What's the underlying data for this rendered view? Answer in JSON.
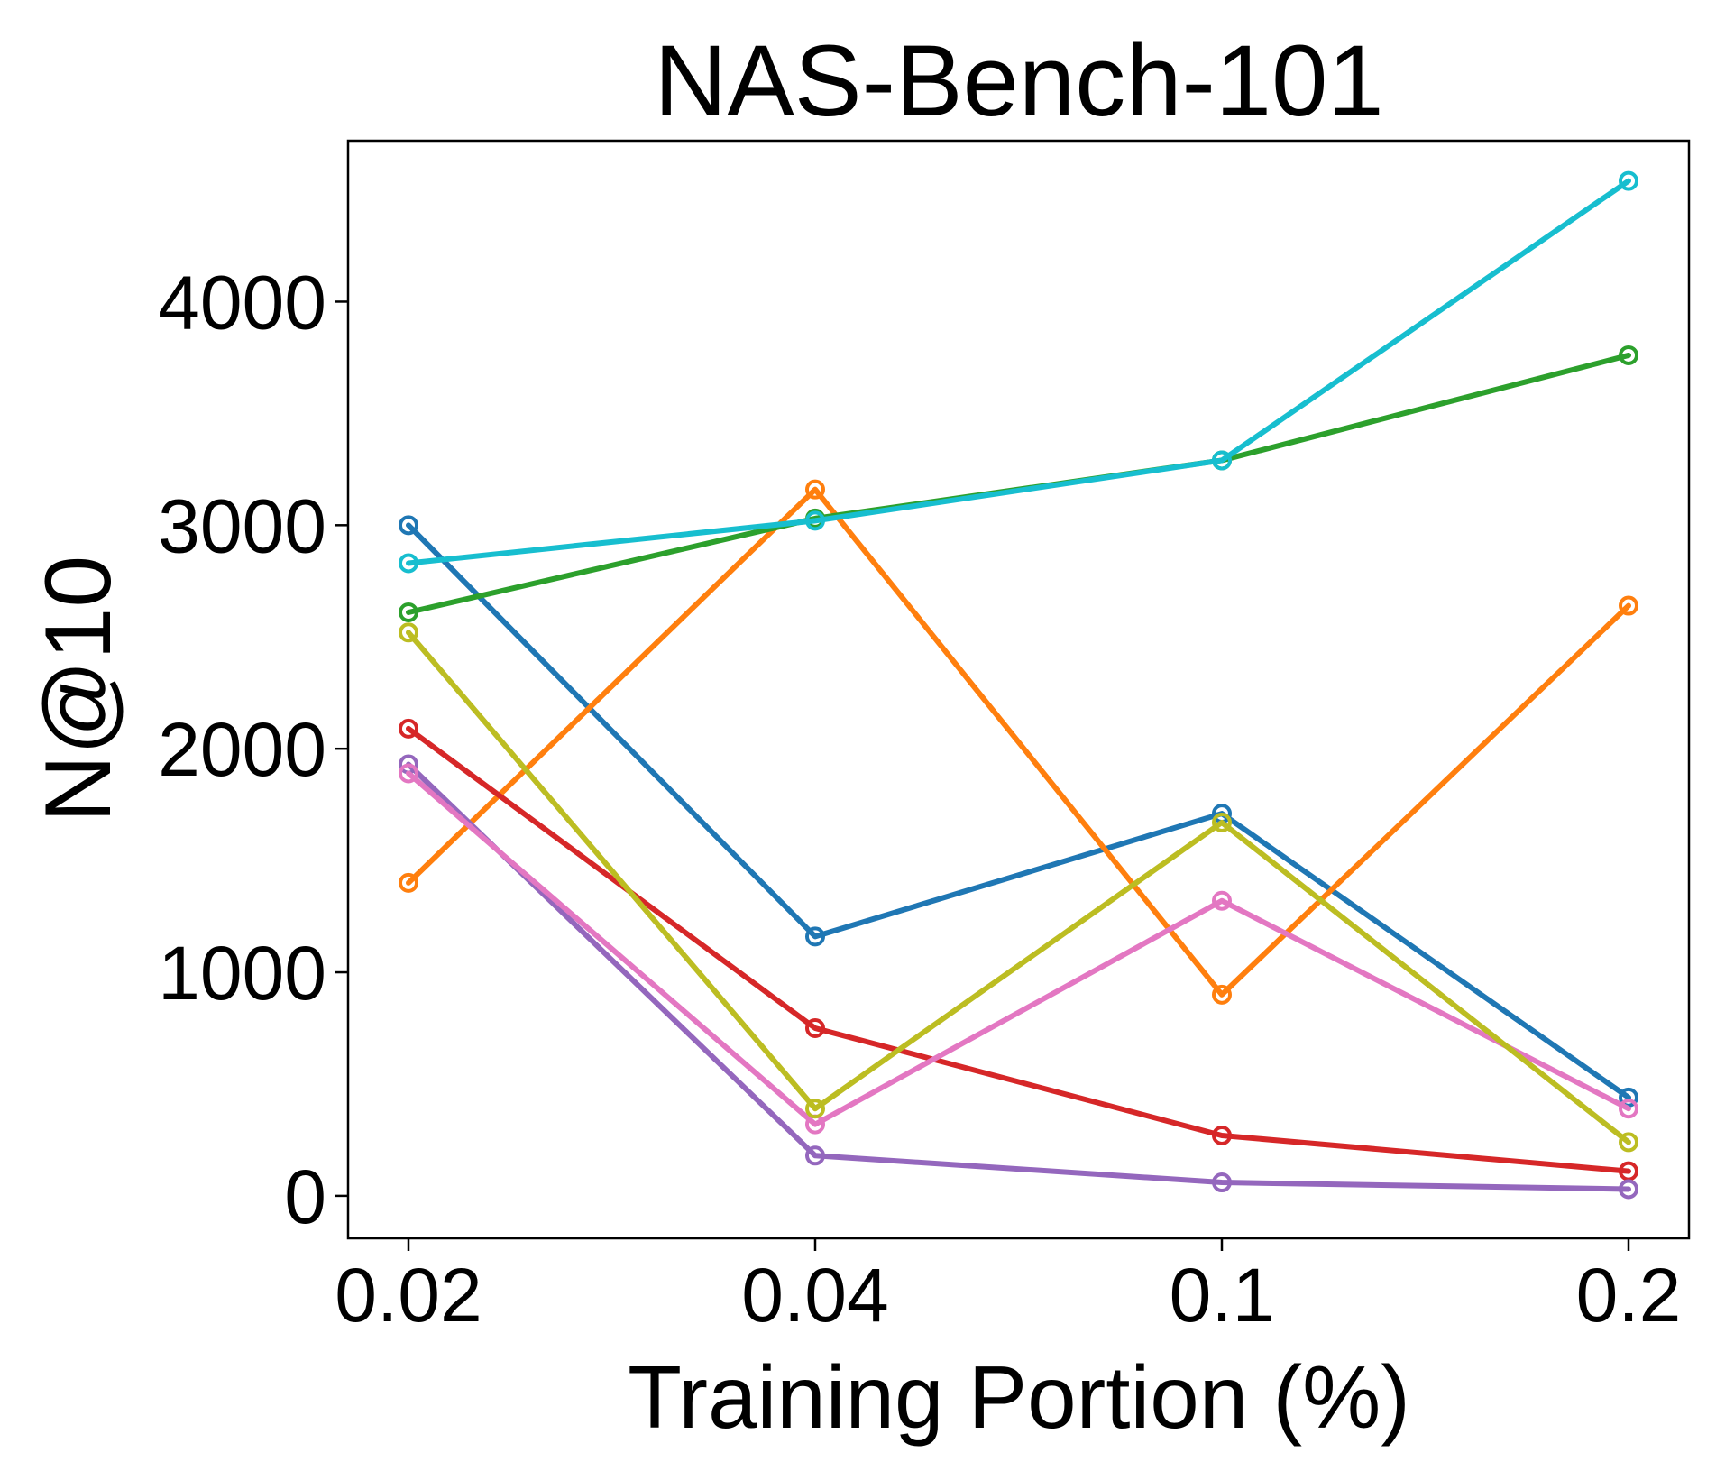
{
  "chart_data": {
    "type": "line",
    "title": "NAS-Bench-101",
    "xlabel": "Training Portion (%)",
    "ylabel": "N@10",
    "categories": [
      "0.02",
      "0.04",
      "0.1",
      "0.2"
    ],
    "ylim": [
      -190,
      4720
    ],
    "yticks": [
      0,
      1000,
      2000,
      3000,
      4000
    ],
    "grid": false,
    "series": [
      {
        "name": "blue",
        "color": "#1f77b4",
        "values": [
          3000,
          1160,
          1710,
          440
        ]
      },
      {
        "name": "orange",
        "color": "#ff7f0e",
        "values": [
          1400,
          3160,
          900,
          2640
        ]
      },
      {
        "name": "green",
        "color": "#2ca02c",
        "values": [
          2610,
          3030,
          3290,
          3760
        ]
      },
      {
        "name": "red",
        "color": "#d62728",
        "values": [
          2090,
          750,
          270,
          110
        ]
      },
      {
        "name": "purple",
        "color": "#9467bd",
        "values": [
          1930,
          180,
          60,
          30
        ]
      },
      {
        "name": "pink",
        "color": "#e377c2",
        "values": [
          1890,
          320,
          1320,
          390
        ]
      },
      {
        "name": "olive",
        "color": "#bcbd22",
        "values": [
          2520,
          390,
          1670,
          240
        ]
      },
      {
        "name": "cyan",
        "color": "#17becf",
        "values": [
          2830,
          3020,
          3290,
          4540
        ]
      }
    ]
  }
}
